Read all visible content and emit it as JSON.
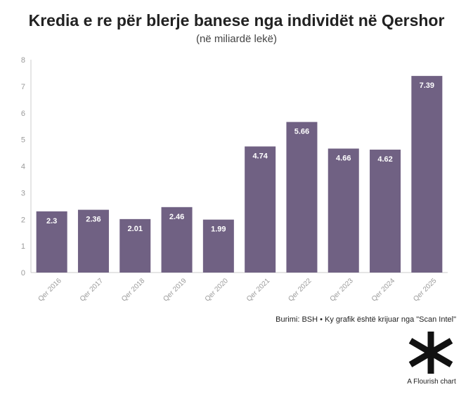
{
  "title": "Kredia e re për blerje banese nga individët në Qershor",
  "subtitle": "(në miliardë lekë)",
  "source": "Burimi: BSH • Ky grafik është krijuar nga \"Scan Intel\"",
  "logo_text": "A Flourish chart",
  "logo_icon": "asterisk-logo-icon",
  "colors": {
    "bar": "#706183",
    "axis": "#cccccc",
    "tick_text": "#9a9a9a"
  },
  "chart_data": {
    "type": "bar",
    "title": "Kredia e re për blerje banese nga individët në Qershor",
    "subtitle": "(në miliardë lekë)",
    "xlabel": "",
    "ylabel": "",
    "categories": [
      "Qer 2016",
      "Qer 2017",
      "Qer 2018",
      "Qer 2019",
      "Qer 2020",
      "Qer 2021",
      "Qer 2022",
      "Qer 2023",
      "Qer 2024",
      "Qer 2025"
    ],
    "values": [
      2.3,
      2.36,
      2.01,
      2.46,
      1.99,
      4.74,
      5.66,
      4.66,
      4.62,
      7.39
    ],
    "data_labels": [
      "2.3",
      "2.36",
      "2.01",
      "2.46",
      "1.99",
      "4.74",
      "5.66",
      "4.66",
      "4.62",
      "7.39"
    ],
    "ylim": [
      0,
      8
    ],
    "yticks": [
      "0",
      "1",
      "2",
      "3",
      "4",
      "5",
      "6",
      "7",
      "8"
    ],
    "grid": false,
    "legend": "none"
  }
}
